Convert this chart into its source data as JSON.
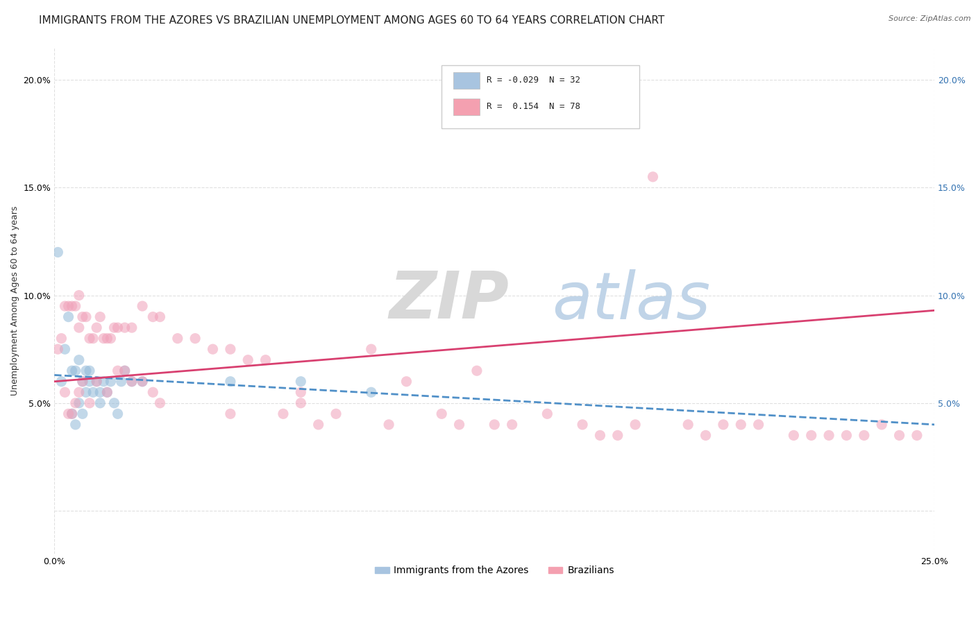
{
  "title": "IMMIGRANTS FROM THE AZORES VS BRAZILIAN UNEMPLOYMENT AMONG AGES 60 TO 64 YEARS CORRELATION CHART",
  "source": "Source: ZipAtlas.com",
  "ylabel": "Unemployment Among Ages 60 to 64 years",
  "xmin": 0.0,
  "xmax": 0.25,
  "ymin": -0.02,
  "ymax": 0.215,
  "ytick_labels": [
    "",
    "5.0%",
    "10.0%",
    "15.0%",
    "20.0%"
  ],
  "ytick_values": [
    0.0,
    0.05,
    0.1,
    0.15,
    0.2
  ],
  "xtick_labels": [
    "0.0%",
    "25.0%"
  ],
  "xtick_values": [
    0.0,
    0.25
  ],
  "right_ytick_labels": [
    "5.0%",
    "10.0%",
    "15.0%",
    "20.0%"
  ],
  "right_ytick_values": [
    0.05,
    0.1,
    0.15,
    0.2
  ],
  "legend_entries": [
    {
      "label": "R = -0.029  N = 32",
      "color": "#a8c4e0"
    },
    {
      "label": "R =  0.154  N = 78",
      "color": "#f4a0b0"
    }
  ],
  "legend_bottom_entries": [
    {
      "label": "Immigrants from the Azores",
      "color": "#a8c4e0"
    },
    {
      "label": "Brazilians",
      "color": "#f4a0b0"
    }
  ],
  "watermark_zip": "ZIP",
  "watermark_atlas": "atlas",
  "blue_scatter_x": [
    0.001,
    0.002,
    0.003,
    0.004,
    0.005,
    0.005,
    0.006,
    0.006,
    0.007,
    0.007,
    0.008,
    0.008,
    0.009,
    0.009,
    0.01,
    0.01,
    0.011,
    0.012,
    0.013,
    0.013,
    0.014,
    0.015,
    0.016,
    0.017,
    0.018,
    0.019,
    0.02,
    0.022,
    0.025,
    0.05,
    0.07,
    0.09
  ],
  "blue_scatter_y": [
    0.12,
    0.06,
    0.075,
    0.09,
    0.065,
    0.045,
    0.065,
    0.04,
    0.07,
    0.05,
    0.06,
    0.045,
    0.065,
    0.055,
    0.065,
    0.06,
    0.055,
    0.06,
    0.055,
    0.05,
    0.06,
    0.055,
    0.06,
    0.05,
    0.045,
    0.06,
    0.065,
    0.06,
    0.06,
    0.06,
    0.06,
    0.055
  ],
  "pink_scatter_x": [
    0.001,
    0.002,
    0.003,
    0.004,
    0.005,
    0.006,
    0.007,
    0.007,
    0.008,
    0.009,
    0.01,
    0.011,
    0.012,
    0.013,
    0.014,
    0.015,
    0.016,
    0.017,
    0.018,
    0.02,
    0.022,
    0.025,
    0.028,
    0.03,
    0.035,
    0.04,
    0.045,
    0.05,
    0.055,
    0.06,
    0.065,
    0.07,
    0.075,
    0.08,
    0.09,
    0.095,
    0.1,
    0.11,
    0.115,
    0.12,
    0.125,
    0.13,
    0.14,
    0.15,
    0.155,
    0.16,
    0.165,
    0.17,
    0.18,
    0.185,
    0.19,
    0.195,
    0.2,
    0.21,
    0.215,
    0.22,
    0.225,
    0.23,
    0.235,
    0.24,
    0.245,
    0.003,
    0.004,
    0.005,
    0.006,
    0.007,
    0.008,
    0.01,
    0.012,
    0.015,
    0.018,
    0.02,
    0.022,
    0.025,
    0.028,
    0.03,
    0.05,
    0.07
  ],
  "pink_scatter_y": [
    0.075,
    0.08,
    0.095,
    0.095,
    0.095,
    0.095,
    0.1,
    0.085,
    0.09,
    0.09,
    0.08,
    0.08,
    0.085,
    0.09,
    0.08,
    0.08,
    0.08,
    0.085,
    0.085,
    0.085,
    0.085,
    0.095,
    0.09,
    0.09,
    0.08,
    0.08,
    0.075,
    0.075,
    0.07,
    0.07,
    0.045,
    0.055,
    0.04,
    0.045,
    0.075,
    0.04,
    0.06,
    0.045,
    0.04,
    0.065,
    0.04,
    0.04,
    0.045,
    0.04,
    0.035,
    0.035,
    0.04,
    0.155,
    0.04,
    0.035,
    0.04,
    0.04,
    0.04,
    0.035,
    0.035,
    0.035,
    0.035,
    0.035,
    0.04,
    0.035,
    0.035,
    0.055,
    0.045,
    0.045,
    0.05,
    0.055,
    0.06,
    0.05,
    0.06,
    0.055,
    0.065,
    0.065,
    0.06,
    0.06,
    0.055,
    0.05,
    0.045,
    0.05
  ],
  "blue_line_x": [
    0.0,
    0.25
  ],
  "blue_line_y": [
    0.063,
    0.04
  ],
  "pink_line_x": [
    0.0,
    0.25
  ],
  "pink_line_y": [
    0.06,
    0.093
  ],
  "blue_color": "#90b8d8",
  "pink_color": "#f0a0b8",
  "blue_line_color": "#5090c8",
  "pink_line_color": "#d84070",
  "grid_color": "#e0e0e0",
  "grid_linestyle": "--",
  "background_color": "#ffffff",
  "title_fontsize": 11,
  "axis_fontsize": 9,
  "scatter_size": 120,
  "scatter_alpha": 0.55
}
